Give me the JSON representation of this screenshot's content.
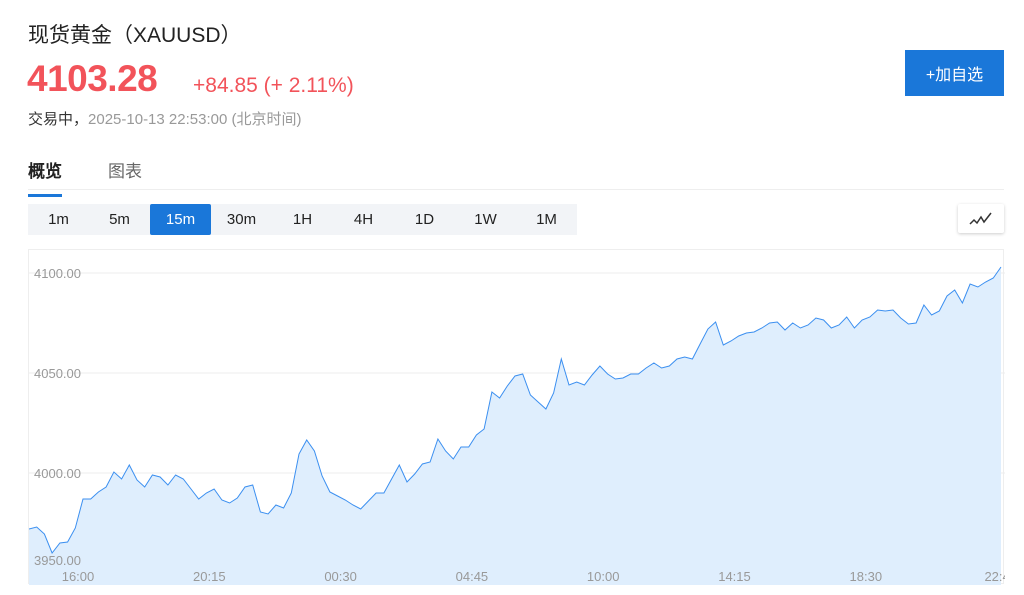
{
  "header": {
    "title": "现货黄金（XAUUSD）",
    "price": "4103.28",
    "change": "+84.85 (+ 2.11%)",
    "status_label": "交易中，",
    "timestamp": "2025-10-13 22:53:00 (北京时间)",
    "add_watchlist": "+加自选"
  },
  "tabs": [
    {
      "label": "概览",
      "active": true
    },
    {
      "label": "图表",
      "active": false
    }
  ],
  "periods": [
    {
      "label": "1m"
    },
    {
      "label": "5m"
    },
    {
      "label": "15m",
      "active": true
    },
    {
      "label": "30m"
    },
    {
      "label": "1H"
    },
    {
      "label": "4H"
    },
    {
      "label": "1D"
    },
    {
      "label": "1W"
    },
    {
      "label": "1M"
    }
  ],
  "colors": {
    "up": "#f2535a",
    "accent": "#1a77d9",
    "line": "#3b8ff0",
    "fill": "#dfeefd"
  },
  "chart_data": {
    "type": "area",
    "interval": "15m",
    "ylim": [
      3950,
      4110
    ],
    "y_ticks": [
      "4100.00",
      "4050.00",
      "4000.00",
      "3950.00"
    ],
    "x_ticks": [
      "16:00",
      "20:15",
      "00:30",
      "04:45",
      "10:00",
      "14:15",
      "18:30",
      "22:4"
    ],
    "grid": true,
    "values": [
      3972,
      3973,
      3969.5,
      3960,
      3965,
      3965.5,
      3972.5,
      3987,
      3987,
      3990.5,
      3993,
      4000.5,
      3997,
      4004,
      3996.5,
      3993,
      3999,
      3998,
      3994,
      3999,
      3997,
      3992,
      3987,
      3990,
      3992,
      3986.5,
      3985,
      3987.5,
      3993,
      3994,
      3980.5,
      3979.5,
      3984,
      3982.5,
      3990,
      4009.5,
      4016.5,
      4011,
      3998.5,
      3990.5,
      3988.5,
      3986.5,
      3984,
      3982,
      3986,
      3990,
      3990,
      3997,
      4004,
      3995.5,
      3999.5,
      4004.5,
      4005.5,
      4017,
      4011,
      4007,
      4013,
      4013,
      4019,
      4022,
      4040.5,
      4037.5,
      4043.5,
      4048.5,
      4049.5,
      4039,
      4035.5,
      4032,
      4040,
      4057,
      4044,
      4045.5,
      4044,
      4049,
      4053.5,
      4049.5,
      4047,
      4047.5,
      4049.5,
      4049.5,
      4052.5,
      4055,
      4052.5,
      4053.5,
      4057,
      4058,
      4057,
      4064.5,
      4072,
      4075.5,
      4064,
      4066,
      4068.5,
      4070,
      4070.5,
      4072.5,
      4075,
      4075.5,
      4071.5,
      4075,
      4072.5,
      4074,
      4077.5,
      4076.5,
      4072.5,
      4074,
      4078,
      4072.5,
      4076.5,
      4078,
      4081.5,
      4081,
      4081.5,
      4077.5,
      4074.5,
      4075,
      4084,
      4079,
      4081,
      4088.5,
      4091.5,
      4085,
      4094.5,
      4093,
      4095.5,
      4097.5,
      4103
    ]
  }
}
